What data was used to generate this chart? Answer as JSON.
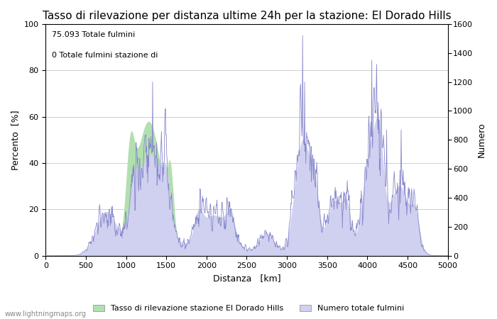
{
  "title": "Tasso di rilevazione per distanza ultime 24h per la stazione: El Dorado Hills",
  "xlabel": "Distanza   [km]",
  "ylabel_left": "Percento  [%]",
  "ylabel_right": "Numero",
  "annotation_line1": "75.093 Totale fulmini",
  "annotation_line2": "0 Totale fulmini stazione di",
  "legend_label1": "Tasso di rilevazione stazione El Dorado Hills",
  "legend_label2": "Numero totale fulmini",
  "watermark": "www.lightningmaps.org",
  "xlim": [
    0,
    5000
  ],
  "ylim_left": [
    0,
    100
  ],
  "ylim_right": [
    0,
    1600
  ],
  "xticks": [
    0,
    500,
    1000,
    1500,
    2000,
    2500,
    3000,
    3500,
    4000,
    4500,
    5000
  ],
  "yticks_left": [
    0,
    20,
    40,
    60,
    80,
    100
  ],
  "yticks_right": [
    0,
    200,
    400,
    600,
    800,
    1000,
    1200,
    1400,
    1600
  ],
  "fill_color_green": "#b2dfb0",
  "fill_color_blue": "#d0d0f0",
  "line_color": "#8888cc",
  "bg_color": "#ffffff",
  "grid_color": "#aaaaaa",
  "title_fontsize": 11,
  "label_fontsize": 9,
  "tick_fontsize": 8,
  "annotation_fontsize": 8,
  "figsize": [
    7.0,
    4.5
  ],
  "dpi": 100
}
